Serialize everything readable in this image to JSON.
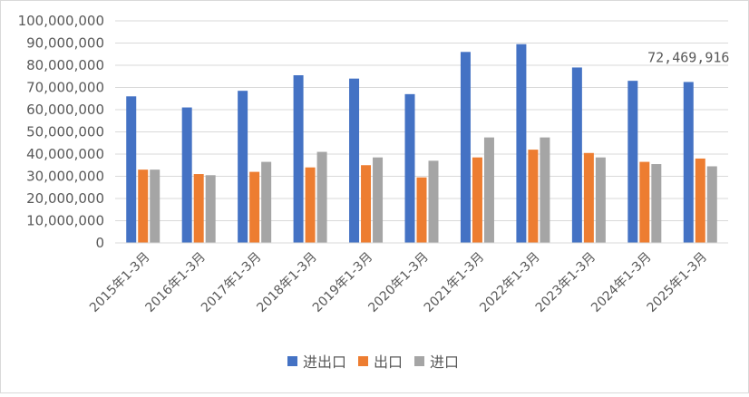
{
  "chart_data": {
    "type": "bar",
    "categories": [
      "2015年1-3月",
      "2016年1-3月",
      "2017年1-3月",
      "2018年1-3月",
      "2019年1-3月",
      "2020年1-3月",
      "2021年1-3月",
      "2022年1-3月",
      "2023年1-3月",
      "2024年1-3月",
      "2025年1-3月"
    ],
    "series": [
      {
        "name": "进出口",
        "color": "#4472C4",
        "values": [
          66000000,
          61000000,
          68500000,
          75500000,
          74000000,
          67000000,
          86000000,
          89500000,
          79000000,
          73000000,
          72469916
        ]
      },
      {
        "name": "出口",
        "color": "#ED7D31",
        "values": [
          33000000,
          31000000,
          32000000,
          34000000,
          35000000,
          29500000,
          38500000,
          42000000,
          40500000,
          36500000,
          38000000
        ]
      },
      {
        "name": "进口",
        "color": "#A5A5A5",
        "values": [
          33000000,
          30500000,
          36500000,
          41000000,
          38500000,
          37000000,
          47500000,
          47500000,
          38500000,
          35500000,
          34500000
        ]
      }
    ],
    "y_ticks": [
      "0",
      "10,000,000",
      "20,000,000",
      "30,000,000",
      "40,000,000",
      "50,000,000",
      "60,000,000",
      "70,000,000",
      "80,000,000",
      "90,000,000",
      "100,000,000"
    ],
    "ylim": [
      0,
      100000000
    ],
    "data_labels": [
      {
        "series": "进出口",
        "category": "2025年1-3月",
        "text": "72,469,916"
      }
    ],
    "grid": true,
    "legend": "bottom"
  }
}
